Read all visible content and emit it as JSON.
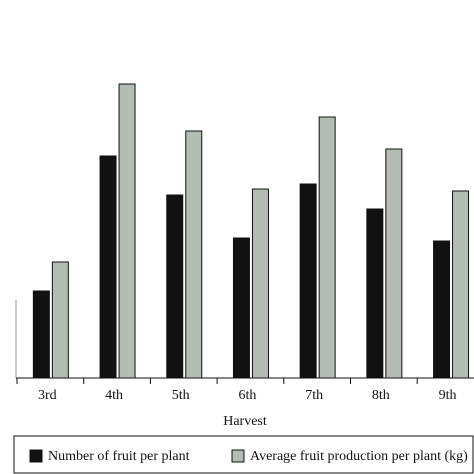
{
  "chart_data": {
    "type": "bar",
    "x_label": "Harvest",
    "categories": [
      "3rd",
      "4th",
      "5th",
      "6th",
      "7th",
      "8th",
      "9th"
    ],
    "series": [
      {
        "name": "Number of fruit per plant",
        "color": "#111111",
        "values": [
          87,
          222,
          183,
          140,
          194,
          169,
          137
        ]
      },
      {
        "name": "Average fruit production per plant (kg)",
        "color": "#b4bdb4",
        "values": [
          116,
          294,
          247,
          189,
          261,
          229,
          187
        ]
      }
    ],
    "ylim": [
      0,
      378
    ]
  }
}
